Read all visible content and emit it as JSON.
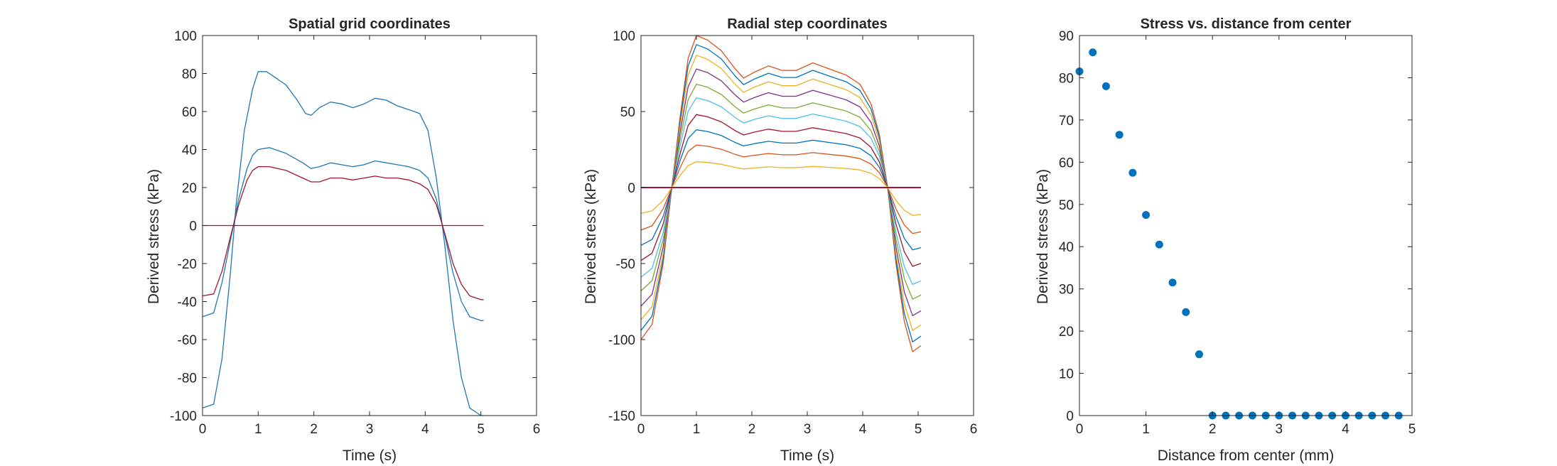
{
  "chart_data": [
    {
      "type": "line",
      "title": "Spatial grid coordinates",
      "xlabel": "Time (s)",
      "ylabel": "Derived stress (kPa)",
      "xlim": [
        0,
        6
      ],
      "ylim": [
        -100,
        100
      ],
      "xticks": [
        0,
        1,
        2,
        3,
        4,
        5,
        6
      ],
      "yticks": [
        -100,
        -80,
        -60,
        -40,
        -20,
        0,
        20,
        40,
        60,
        80,
        100
      ],
      "grid": false,
      "series": [
        {
          "color": "#1f77b4",
          "x": [
            0,
            0.2,
            0.35,
            0.5,
            0.6,
            0.75,
            0.9,
            1.0,
            1.15,
            1.3,
            1.5,
            1.7,
            1.85,
            1.95,
            2.1,
            2.3,
            2.5,
            2.7,
            2.9,
            3.1,
            3.3,
            3.5,
            3.7,
            3.9,
            4.05,
            4.2,
            4.35,
            4.5,
            4.65,
            4.8,
            5.0,
            5.05
          ],
          "y": [
            -96,
            -94,
            -70,
            -25,
            10,
            50,
            72,
            81,
            81,
            78,
            74,
            66,
            59,
            58,
            62,
            65,
            64,
            62,
            64,
            67,
            66,
            63,
            61,
            59,
            50,
            25,
            -10,
            -50,
            -80,
            -96,
            -100,
            -100
          ]
        },
        {
          "color": "#1f77b4",
          "x": [
            0,
            0.2,
            0.35,
            0.5,
            0.65,
            0.8,
            0.9,
            1.0,
            1.2,
            1.5,
            1.8,
            1.95,
            2.1,
            2.3,
            2.5,
            2.7,
            2.9,
            3.1,
            3.3,
            3.5,
            3.7,
            3.9,
            4.05,
            4.2,
            4.35,
            4.5,
            4.65,
            4.8,
            5.0,
            5.05
          ],
          "y": [
            -48,
            -46,
            -30,
            -8,
            14,
            30,
            37,
            40,
            41,
            38,
            33,
            30,
            31,
            33,
            32,
            31,
            32,
            34,
            33,
            32,
            31,
            29,
            25,
            14,
            -5,
            -25,
            -40,
            -48,
            -50,
            -50
          ]
        },
        {
          "color": "#a2142f",
          "x": [
            0,
            0.2,
            0.35,
            0.5,
            0.65,
            0.8,
            0.9,
            1.0,
            1.2,
            1.5,
            1.8,
            1.95,
            2.1,
            2.3,
            2.5,
            2.7,
            2.9,
            3.1,
            3.3,
            3.5,
            3.7,
            3.9,
            4.05,
            4.2,
            4.35,
            4.5,
            4.65,
            4.8,
            5.0,
            5.05
          ],
          "y": [
            -37,
            -36,
            -24,
            -6,
            11,
            24,
            29,
            31,
            31,
            29,
            25,
            23,
            23,
            25,
            25,
            24,
            25,
            26,
            25,
            25,
            24,
            22,
            19,
            11,
            -4,
            -20,
            -31,
            -37,
            -39,
            -39
          ]
        },
        {
          "color": "#a2142f",
          "x": [
            0,
            5.05
          ],
          "y": [
            0,
            0
          ]
        }
      ]
    },
    {
      "type": "line",
      "title": "Radial step coordinates",
      "xlabel": "Time (s)",
      "ylabel": "Derived stress (kPa)",
      "xlim": [
        0,
        6
      ],
      "ylim": [
        -150,
        100
      ],
      "xticks": [
        0,
        1,
        2,
        3,
        4,
        5,
        6
      ],
      "yticks": [
        -150,
        -100,
        -50,
        0,
        50,
        100
      ],
      "grid": false,
      "shape": {
        "x": [
          0,
          0.2,
          0.4,
          0.55,
          0.7,
          0.85,
          1.0,
          1.2,
          1.45,
          1.7,
          1.85,
          2.05,
          2.3,
          2.55,
          2.8,
          3.1,
          3.4,
          3.7,
          3.95,
          4.15,
          4.3,
          4.45,
          4.6,
          4.75,
          4.9,
          5.05
        ],
        "y": [
          -1,
          -0.9,
          -0.5,
          -0.02,
          0.45,
          0.85,
          1,
          0.97,
          0.9,
          0.78,
          0.72,
          0.76,
          0.8,
          0.77,
          0.77,
          0.82,
          0.78,
          0.74,
          0.68,
          0.55,
          0.35,
          0,
          -0.5,
          -0.88,
          -1.08,
          -1.04
        ]
      },
      "series": [
        {
          "color": "#d95319",
          "amplitude": 100
        },
        {
          "color": "#0072bd",
          "amplitude": 94
        },
        {
          "color": "#edb120",
          "amplitude": 87
        },
        {
          "color": "#7e2f8e",
          "amplitude": 78
        },
        {
          "color": "#77ac30",
          "amplitude": 68
        },
        {
          "color": "#4dbeee",
          "amplitude": 59
        },
        {
          "color": "#a2142f",
          "amplitude": 48
        },
        {
          "color": "#0072bd",
          "amplitude": 38
        },
        {
          "color": "#d95319",
          "amplitude": 28
        },
        {
          "color": "#edb120",
          "amplitude": 17
        },
        {
          "color": "#a2142f",
          "amplitude": 0
        }
      ]
    },
    {
      "type": "scatter",
      "title": "Stress vs. distance from center",
      "xlabel": "Distance from center (mm)",
      "ylabel": "Derived stress (kPa)",
      "xlim": [
        0,
        5
      ],
      "ylim": [
        0,
        90
      ],
      "xticks": [
        0,
        1,
        2,
        3,
        4,
        5
      ],
      "yticks": [
        0,
        10,
        20,
        30,
        40,
        50,
        60,
        70,
        80,
        90
      ],
      "grid": false,
      "color": "#0072bd",
      "x": [
        0,
        0.2,
        0.4,
        0.6,
        0.8,
        1.0,
        1.2,
        1.4,
        1.6,
        1.8,
        2.0,
        2.2,
        2.4,
        2.6,
        2.8,
        3.0,
        3.2,
        3.4,
        3.6,
        3.8,
        4.0,
        4.2,
        4.4,
        4.6,
        4.8
      ],
      "y": [
        81.5,
        86,
        78,
        66.5,
        57.5,
        47.5,
        40.5,
        31.5,
        24.5,
        14.5,
        0,
        0,
        0,
        0,
        0,
        0,
        0,
        0,
        0,
        0,
        0,
        0,
        0,
        0,
        0
      ]
    }
  ]
}
